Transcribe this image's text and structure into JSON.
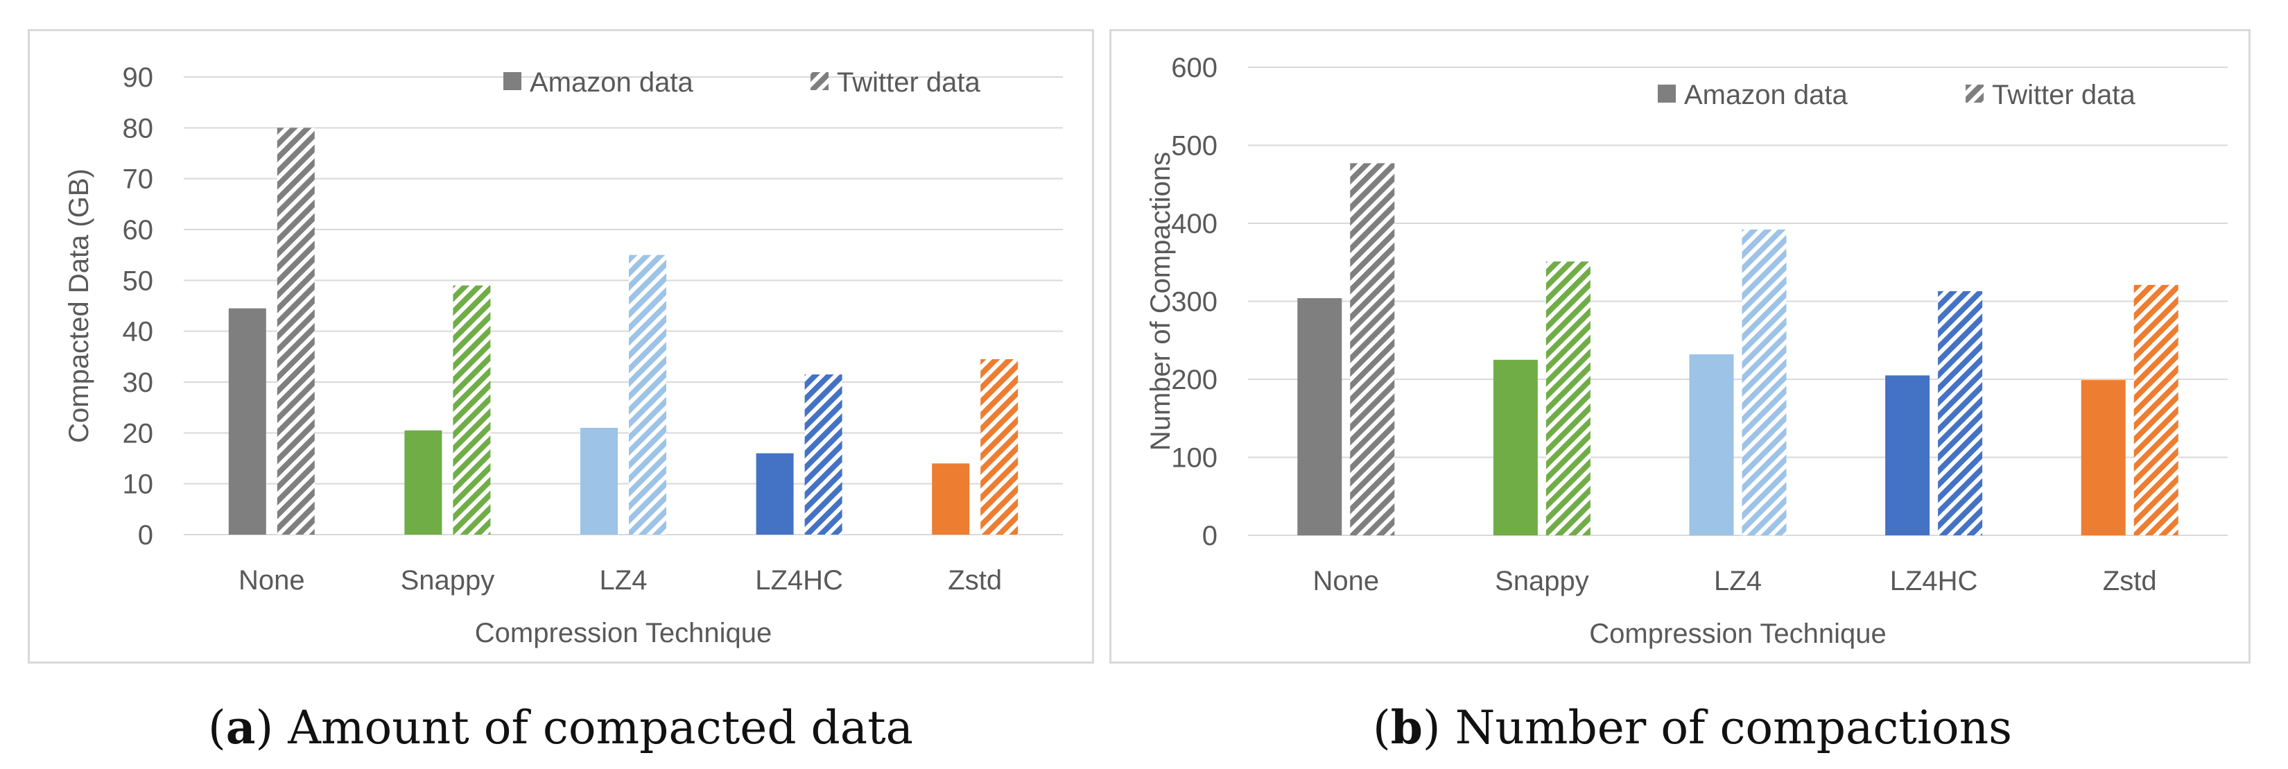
{
  "series_names": [
    "Amazon data",
    "Twitter data"
  ],
  "colors": {
    "None": "#7f7f7f",
    "Snappy": "#70ad47",
    "LZ4": "#9dc3e6",
    "LZ4HC": "#4472c4",
    "Zstd": "#ed7d31",
    "legend": "#7f7f7f",
    "grid": "#d9d9d9",
    "text": "#595959"
  },
  "captions": {
    "a": {
      "letter": "a",
      "text": "Amount of compacted data"
    },
    "b": {
      "letter": "b",
      "text": "Number of compactions"
    }
  },
  "chart_data": [
    {
      "type": "bar",
      "title": "",
      "xlabel": "Compression Technique",
      "ylabel": "Compacted Data (GB)",
      "categories": [
        "None",
        "Snappy",
        "LZ4",
        "LZ4HC",
        "Zstd"
      ],
      "ylim": [
        0,
        90
      ],
      "yticks": [
        0,
        10,
        20,
        30,
        40,
        50,
        60,
        70,
        80,
        90
      ],
      "grid": true,
      "legend_position": "top-right",
      "series": [
        {
          "name": "Amazon data",
          "pattern": "solid",
          "values": [
            44.5,
            20.5,
            21,
            16,
            14
          ]
        },
        {
          "name": "Twitter data",
          "pattern": "hatched",
          "values": [
            80,
            49,
            55,
            31.5,
            34.5
          ]
        }
      ]
    },
    {
      "type": "bar",
      "title": "",
      "xlabel": "Compression Technique",
      "ylabel": "Number of Compactions",
      "categories": [
        "None",
        "Snappy",
        "LZ4",
        "LZ4HC",
        "Zstd"
      ],
      "ylim": [
        0,
        600
      ],
      "yticks": [
        0,
        100,
        200,
        300,
        400,
        500,
        600
      ],
      "grid": true,
      "legend_position": "top-right",
      "series": [
        {
          "name": "Amazon data",
          "pattern": "solid",
          "values": [
            304,
            225,
            232,
            205,
            199
          ]
        },
        {
          "name": "Twitter data",
          "pattern": "hatched",
          "values": [
            477,
            351,
            392,
            313,
            321
          ]
        }
      ]
    }
  ]
}
